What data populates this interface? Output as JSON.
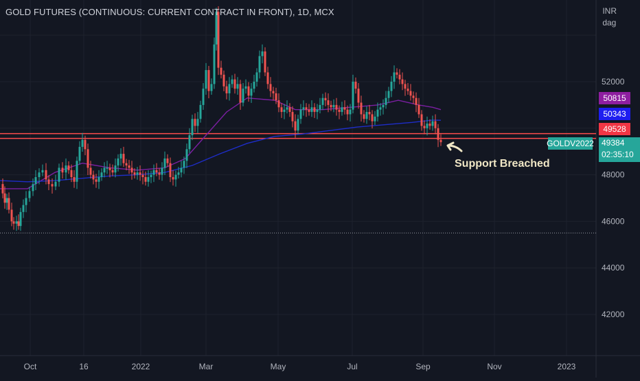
{
  "chart_data": {
    "type": "candlestick",
    "title": "GOLD FUTURES (CONTINUOUS: CURRENT CONTRACT IN FRONT), 1D, MCX",
    "currency": "INR",
    "unit": "dag",
    "ylim": [
      40000,
      55000
    ],
    "y_ticks": [
      42000,
      44000,
      46000,
      48000,
      52000
    ],
    "x_ticks": [
      "Oct",
      "16",
      "2022",
      "Mar",
      "May",
      "Jul",
      "Sep",
      "Nov",
      "2023"
    ],
    "support_level": 49650,
    "low_level": 45500,
    "close_series": [
      [
        0,
        47600
      ],
      [
        4,
        47200
      ],
      [
        7,
        46800
      ],
      [
        10,
        47000
      ],
      [
        13,
        46500
      ],
      [
        17,
        46000
      ],
      [
        20,
        45900
      ],
      [
        24,
        46000
      ],
      [
        27,
        45800
      ],
      [
        30,
        46400
      ],
      [
        34,
        46700
      ],
      [
        38,
        47000
      ],
      [
        43,
        47300
      ],
      [
        48,
        47600
      ],
      [
        52,
        47900
      ],
      [
        57,
        48100
      ],
      [
        62,
        48200
      ],
      [
        67,
        47800
      ],
      [
        71,
        47600
      ],
      [
        76,
        47500
      ],
      [
        81,
        47700
      ],
      [
        86,
        48300
      ],
      [
        91,
        48100
      ],
      [
        96,
        48400
      ],
      [
        100,
        48200
      ],
      [
        104,
        47900
      ],
      [
        108,
        47700
      ],
      [
        112,
        48600
      ],
      [
        116,
        49200
      ],
      [
        120,
        49500
      ],
      [
        124,
        49100
      ],
      [
        128,
        48300
      ],
      [
        132,
        48000
      ],
      [
        136,
        47800
      ],
      [
        140,
        47700
      ],
      [
        144,
        47900
      ],
      [
        148,
        48100
      ],
      [
        152,
        48300
      ],
      [
        156,
        48300
      ],
      [
        160,
        48200
      ],
      [
        164,
        48100
      ],
      [
        168,
        48400
      ],
      [
        172,
        48700
      ],
      [
        176,
        48900
      ],
      [
        180,
        48500
      ],
      [
        184,
        48400
      ],
      [
        188,
        48300
      ],
      [
        192,
        48100
      ],
      [
        196,
        48000
      ],
      [
        200,
        48100
      ],
      [
        204,
        48000
      ],
      [
        208,
        47900
      ],
      [
        212,
        47700
      ],
      [
        216,
        47900
      ],
      [
        220,
        48000
      ],
      [
        224,
        48200
      ],
      [
        228,
        48100
      ],
      [
        232,
        48000
      ],
      [
        236,
        48300
      ],
      [
        240,
        48700
      ],
      [
        244,
        48500
      ],
      [
        248,
        47900
      ],
      [
        252,
        47800
      ],
      [
        256,
        48000
      ],
      [
        260,
        48100
      ],
      [
        264,
        48300
      ],
      [
        268,
        48600
      ],
      [
        272,
        49100
      ],
      [
        276,
        49700
      ],
      [
        280,
        50400
      ],
      [
        284,
        50100
      ],
      [
        288,
        50400
      ],
      [
        292,
        51000
      ],
      [
        296,
        51700
      ],
      [
        300,
        52500
      ],
      [
        304,
        51600
      ],
      [
        308,
        51900
      ],
      [
        312,
        53600
      ],
      [
        315,
        55000
      ],
      [
        318,
        52600
      ],
      [
        322,
        52300
      ],
      [
        326,
        51800
      ],
      [
        330,
        51500
      ],
      [
        334,
        51900
      ],
      [
        338,
        52100
      ],
      [
        342,
        51700
      ],
      [
        346,
        51900
      ],
      [
        350,
        51100
      ],
      [
        354,
        51700
      ],
      [
        358,
        51800
      ],
      [
        362,
        51400
      ],
      [
        366,
        51700
      ],
      [
        370,
        52000
      ],
      [
        374,
        52400
      ],
      [
        378,
        53100
      ],
      [
        382,
        53300
      ],
      [
        386,
        52400
      ],
      [
        390,
        51900
      ],
      [
        394,
        51600
      ],
      [
        398,
        51500
      ],
      [
        402,
        51200
      ],
      [
        406,
        50900
      ],
      [
        410,
        50700
      ],
      [
        414,
        50800
      ],
      [
        418,
        50900
      ],
      [
        422,
        50700
      ],
      [
        426,
        50300
      ],
      [
        430,
        49900
      ],
      [
        434,
        50400
      ],
      [
        438,
        50800
      ],
      [
        442,
        50900
      ],
      [
        446,
        50800
      ],
      [
        450,
        50700
      ],
      [
        454,
        50900
      ],
      [
        458,
        50700
      ],
      [
        462,
        50800
      ],
      [
        466,
        51000
      ],
      [
        470,
        51300
      ],
      [
        474,
        51200
      ],
      [
        478,
        51000
      ],
      [
        482,
        50900
      ],
      [
        486,
        51000
      ],
      [
        490,
        50800
      ],
      [
        494,
        50700
      ],
      [
        498,
        50900
      ],
      [
        502,
        50800
      ],
      [
        506,
        50600
      ],
      [
        510,
        50800
      ],
      [
        514,
        52000
      ],
      [
        518,
        51700
      ],
      [
        522,
        51100
      ],
      [
        526,
        50600
      ],
      [
        530,
        50400
      ],
      [
        534,
        50700
      ],
      [
        538,
        50600
      ],
      [
        542,
        50300
      ],
      [
        546,
        50500
      ],
      [
        550,
        50800
      ],
      [
        554,
        50900
      ],
      [
        558,
        51000
      ],
      [
        562,
        51300
      ],
      [
        566,
        51600
      ],
      [
        570,
        52000
      ],
      [
        574,
        52400
      ],
      [
        578,
        52300
      ],
      [
        582,
        52100
      ],
      [
        586,
        51900
      ],
      [
        590,
        51700
      ],
      [
        594,
        51600
      ],
      [
        598,
        51400
      ],
      [
        602,
        51300
      ],
      [
        606,
        51000
      ],
      [
        610,
        50600
      ],
      [
        614,
        50100
      ],
      [
        618,
        50000
      ],
      [
        622,
        50200
      ],
      [
        626,
        50100
      ],
      [
        630,
        50300
      ],
      [
        634,
        50000
      ],
      [
        638,
        49500
      ],
      [
        642,
        49400
      ]
    ],
    "series": [
      {
        "name": "",
        "color": "#7b1fa2",
        "points": [
          [
            0,
            47400
          ],
          [
            40,
            47400
          ],
          [
            80,
            48100
          ],
          [
            120,
            48500
          ],
          [
            160,
            48300
          ],
          [
            200,
            48200
          ],
          [
            240,
            48300
          ],
          [
            270,
            48700
          ],
          [
            300,
            49700
          ],
          [
            330,
            50700
          ],
          [
            360,
            51300
          ],
          [
            400,
            51200
          ],
          [
            430,
            50800
          ],
          [
            470,
            50800
          ],
          [
            510,
            50900
          ],
          [
            550,
            51000
          ],
          [
            580,
            51200
          ],
          [
            610,
            51000
          ],
          [
            630,
            50900
          ],
          [
            642,
            50800
          ]
        ]
      },
      {
        "name": "",
        "color": "#1e2dc8",
        "points": [
          [
            0,
            47750
          ],
          [
            40,
            47700
          ],
          [
            80,
            47750
          ],
          [
            120,
            47850
          ],
          [
            160,
            47950
          ],
          [
            200,
            48000
          ],
          [
            240,
            48100
          ],
          [
            280,
            48400
          ],
          [
            320,
            48900
          ],
          [
            360,
            49350
          ],
          [
            400,
            49650
          ],
          [
            440,
            49750
          ],
          [
            480,
            49900
          ],
          [
            520,
            50050
          ],
          [
            560,
            50150
          ],
          [
            600,
            50250
          ],
          [
            630,
            50350
          ],
          [
            642,
            50343
          ]
        ]
      }
    ]
  },
  "labels": {
    "currency": "INR",
    "unit": "dag",
    "price_ma1": "50815",
    "price_ma2": "50343",
    "price_prev": "49528",
    "symbol": "GOLDV2022",
    "last_price": "49384",
    "countdown": "02:35:10",
    "annotation": "Support Breached"
  },
  "colors": {
    "background": "#131722",
    "up": "#26a69a",
    "down": "#ef5350",
    "support": "#ff4d4d",
    "grid": "#1e222d",
    "ma1_badge": "#8e1ea0",
    "ma2_badge": "#1e1ef0",
    "prev_badge": "#f23645"
  }
}
